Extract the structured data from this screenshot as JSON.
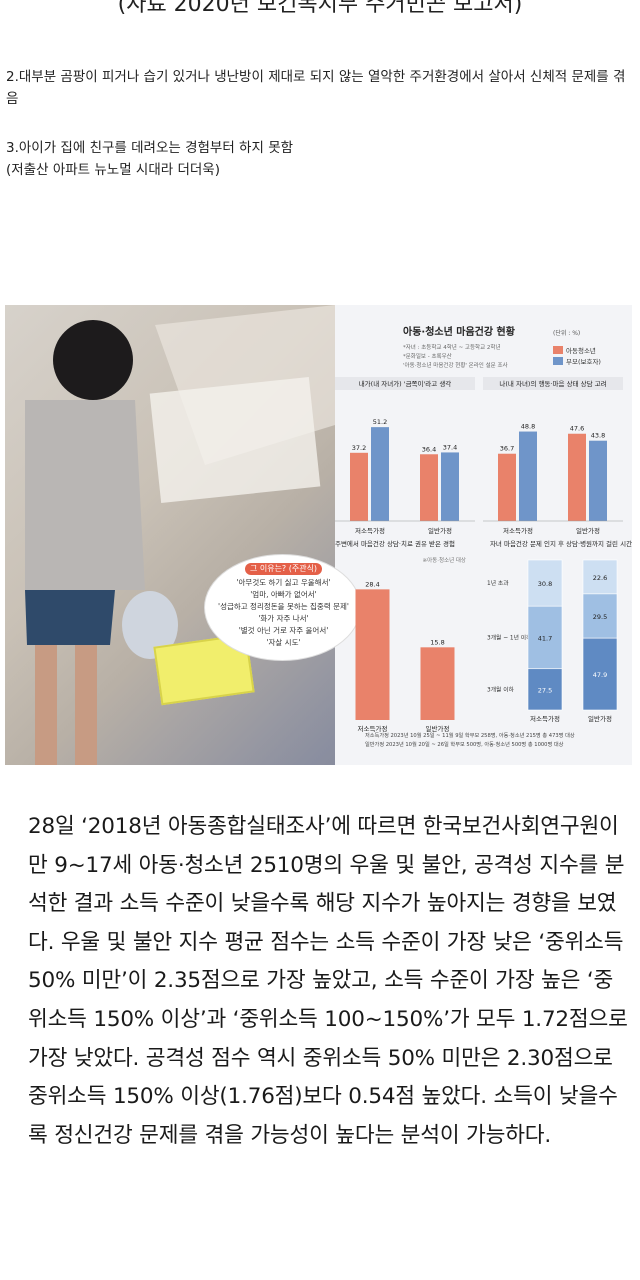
{
  "top_cut_text": "(자료 2020년 보건복지부 주거빈곤 보고서)",
  "paragraphs": {
    "p2": "2.대부분 곰팡이 피거나 습기 있거나 냉난방이 제대로 되지 않는 열악한 주거환경에서 살아서 신체적 문제를 겪음",
    "p3a": "3.아이가 집에 친구를 데려오는 경험부터 하지 못함",
    "p3b": "(저출산 아파트 뉴노멀 시대라 더더욱)"
  },
  "infographic": {
    "title": "아동·청소년 마음건강 현황",
    "unit": "(단위 : %)",
    "notes": [
      "*자녀 : 초등학교 4학년 ~ 고등학교 2학년",
      "*문화일보 - 초록우산",
      "'아동·청소년 마음건강 현황' 온라인 설문 조사"
    ],
    "legend": [
      {
        "label": "아동청소년",
        "color": "#e9826a"
      },
      {
        "label": "부모(보호자)",
        "color": "#6f95c9"
      }
    ],
    "bubble": {
      "title": "그 이유는? (주관식)",
      "lines": [
        "'아무것도 하기 싫고 우울해서'",
        "'엄마, 아빠가 없어서'",
        "'성급하고 정리정돈을 못하는 집중력 문제'",
        "'화가 자주 나서'",
        "'별것 아닌 거로 자주 울어서'",
        "'자살 시도'"
      ]
    },
    "footnotes": [
      "저소득가정  2023년 10월 25일 ~ 11월 9일 학부모 258명, 아동·청소년 215명 총 473명 대상",
      "일반가정  2023년 10월 20일 ~ 26일 학부모 500명, 아동·청소년 500명 총 1000명 대상"
    ]
  },
  "chart_data": [
    {
      "type": "bar",
      "title": "내가(내 자녀가) '금쪽이'라고 생각",
      "categories": [
        "저소득가정",
        "일반가정"
      ],
      "series": [
        {
          "name": "아동청소년",
          "values": [
            37.2,
            36.4
          ]
        },
        {
          "name": "부모(보호자)",
          "values": [
            51.2,
            37.4
          ]
        }
      ],
      "ylim": [
        0,
        60
      ]
    },
    {
      "type": "bar",
      "title": "나(내 자녀)의 행동·마음 상태 상담 고려",
      "categories": [
        "저소득가정",
        "일반가정"
      ],
      "series": [
        {
          "name": "아동청소년",
          "values": [
            36.7,
            47.6
          ]
        },
        {
          "name": "부모(보호자)",
          "values": [
            48.8,
            43.8
          ]
        }
      ],
      "ylim": [
        0,
        60
      ]
    },
    {
      "type": "bar",
      "title": "주변에서 마음건강 상담·치료 권유 받은 경험",
      "note": "※아동·청소년 대상",
      "categories": [
        "저소득가정",
        "일반가정"
      ],
      "values": [
        28.4,
        15.8
      ],
      "ylim": [
        0,
        30
      ]
    },
    {
      "type": "bar",
      "title": "자녀 마음건강 문제 인지 후 상담·병원까지 걸린 시간",
      "categories": [
        "저소득가정",
        "일반가정"
      ],
      "segments": [
        "1년 초과",
        "3개월 ~ 1년 이하",
        "3개월 이하"
      ],
      "series": [
        {
          "name": "1년 초과",
          "values": [
            30.8,
            22.6
          ]
        },
        {
          "name": "3개월 ~ 1년 이하",
          "values": [
            41.7,
            29.5
          ]
        },
        {
          "name": "3개월 이하",
          "values": [
            27.5,
            47.9
          ]
        }
      ]
    }
  ],
  "article": "28일 ‘2018년 아동종합실태조사’에 따르면 한국보건사회연구원이 만 9~17세 아동·청소년 2510명의 우울 및 불안, 공격성 지수를 분석한 결과 소득 수준이 낮을수록 해당 지수가 높아지는 경향을 보였다. 우울 및 불안 지수 평균 점수는 소득 수준이 가장 낮은 ‘중위소득 50% 미만’이 2.35점으로 가장 높았고, 소득 수준이 가장 높은 ‘중위소득 150% 이상’과 ‘중위소득 100~150%’가 모두 1.72점으로 가장 낮았다. 공격성 점수 역시 중위소득 50% 미만은 2.30점으로 중위소득 150% 이상(1.76점)보다 0.54점 높았다. 소득이 낮을수록 정신건강 문제를 겪을 가능성이 높다는 분석이 가능하다."
}
